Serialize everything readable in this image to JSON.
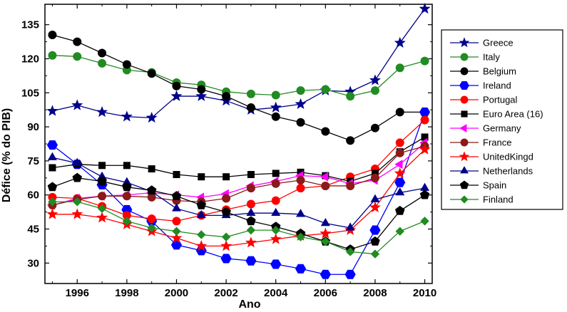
{
  "chart_data": {
    "type": "line",
    "xlabel": "Ano",
    "ylabel": "Défice (% do PIB)",
    "xlim": [
      1994.7,
      2010.3
    ],
    "ylim": [
      21,
      144
    ],
    "x_ticks": [
      1996,
      1998,
      2000,
      2002,
      2004,
      2006,
      2008,
      2010
    ],
    "y_ticks": [
      30,
      45,
      60,
      75,
      90,
      105,
      120,
      135
    ],
    "x": [
      1995,
      1996,
      1997,
      1998,
      1999,
      2000,
      2001,
      2002,
      2003,
      2004,
      2005,
      2006,
      2007,
      2008,
      2009,
      2010
    ],
    "legend_position": "right",
    "grid": false,
    "series": [
      {
        "name": "Greece",
        "color": "#00008b",
        "marker": "star",
        "values": [
          97,
          99.5,
          96.5,
          94.5,
          94,
          103.5,
          103.5,
          101.5,
          97.5,
          98.5,
          100,
          106,
          105.5,
          110.5,
          127,
          142
        ]
      },
      {
        "name": "Italy",
        "color": "#228b22",
        "marker": "circle",
        "values": [
          121.5,
          121,
          118,
          115,
          114,
          109.5,
          108.5,
          105.5,
          104.5,
          104,
          106,
          106.5,
          103.5,
          106,
          116,
          119
        ]
      },
      {
        "name": "Belgium",
        "color": "#000000",
        "marker": "circle",
        "values": [
          130.5,
          127.5,
          122.5,
          117.5,
          113.5,
          108,
          106.5,
          103.5,
          98.5,
          94.5,
          92,
          88,
          84,
          89.5,
          96.5,
          96.5
        ]
      },
      {
        "name": "Ireland",
        "color": "#0000ff",
        "marker": "hexagon",
        "values": [
          82,
          73.5,
          64.5,
          53.5,
          48.5,
          38,
          35.5,
          32,
          31,
          29.5,
          27.5,
          25,
          25,
          44.5,
          65.5,
          96.5
        ]
      },
      {
        "name": "Portugal",
        "color": "#ff0000",
        "marker": "circle",
        "values": [
          59,
          58.5,
          55,
          51,
          49.5,
          48.5,
          51,
          53.5,
          56,
          57.5,
          63,
          64,
          68,
          71.5,
          83,
          93
        ]
      },
      {
        "name": "Euro Area (16)",
        "color": "#000000",
        "marker": "square",
        "values": [
          72,
          73.5,
          73,
          73,
          71.5,
          69,
          68,
          68,
          69,
          69.5,
          70,
          68.5,
          66,
          69.5,
          79,
          85.5
        ]
      },
      {
        "name": "Germany",
        "color": "#ff00ff",
        "marker": "triangle-left",
        "values": [
          55.5,
          58.5,
          59.5,
          60,
          61,
          60,
          59,
          60.5,
          64,
          66,
          68.5,
          68,
          65,
          66.5,
          73.5,
          83
        ]
      },
      {
        "name": "France",
        "color": "#8b1a1a",
        "marker": "circle",
        "values": [
          55.5,
          58,
          59.5,
          59.5,
          59,
          57.5,
          57,
          58.5,
          63,
          65,
          66.5,
          64,
          64,
          67.5,
          78.5,
          81.5
        ]
      },
      {
        "name": "UnitedKingd",
        "color": "#ff0000",
        "marker": "star",
        "values": [
          51.5,
          51.5,
          50,
          47,
          44,
          41,
          37.5,
          37.5,
          39,
          40.5,
          42,
          43,
          44.5,
          54.5,
          69.5,
          80
        ]
      },
      {
        "name": "Netherlands",
        "color": "#00008b",
        "marker": "triangle-up",
        "values": [
          76.5,
          74,
          68,
          65.5,
          61.5,
          54,
          51,
          51,
          52,
          52,
          51.5,
          47.5,
          45.5,
          58,
          61,
          63
        ]
      },
      {
        "name": "Spain",
        "color": "#000000",
        "marker": "pentagon",
        "values": [
          63.5,
          67.5,
          66,
          63.5,
          62,
          59.5,
          55.5,
          52.5,
          48.5,
          46,
          43,
          39.5,
          36,
          39.5,
          53,
          60
        ]
      },
      {
        "name": "Finland",
        "color": "#228b22",
        "marker": "diamond",
        "values": [
          57,
          57,
          54,
          48.5,
          45.5,
          44,
          42.5,
          41.5,
          44.5,
          44.5,
          41.5,
          39.5,
          35,
          34,
          44,
          48.5
        ]
      }
    ]
  }
}
